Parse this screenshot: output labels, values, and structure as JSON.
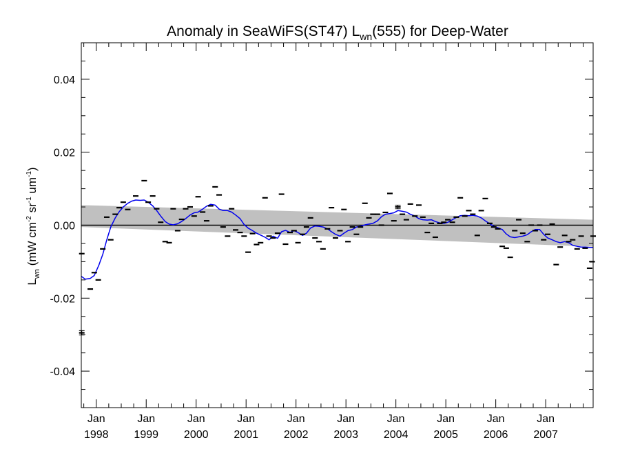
{
  "chart_data": {
    "type": "scatter",
    "title": {
      "prefix": "Anomaly in SeaWiFS(ST47) L",
      "sub": "wn",
      "suffix": "(555) for Deep-Water"
    },
    "ylabel": {
      "L": "L",
      "wn": "wn",
      "open": " (mW cm",
      "exp1": "-2",
      "sr": " sr",
      "exp2": "-1",
      "um": " um",
      "exp3": "-1",
      "close": ")"
    },
    "xlim": [
      1997.7,
      2007.95
    ],
    "ylim": [
      -0.05,
      0.05
    ],
    "grid": false,
    "yticks": [
      {
        "value": -0.04,
        "label": "-0.04"
      },
      {
        "value": -0.02,
        "label": "-0.02"
      },
      {
        "value": 0.0,
        "label": "0.00"
      },
      {
        "value": 0.02,
        "label": "0.02"
      },
      {
        "value": 0.04,
        "label": "0.04"
      }
    ],
    "xticks": [
      {
        "value": 1998.0,
        "month": "Jan",
        "year": "1998"
      },
      {
        "value": 1999.0,
        "month": "Jan",
        "year": "1999"
      },
      {
        "value": 2000.0,
        "month": "Jan",
        "year": "2000"
      },
      {
        "value": 2001.0,
        "month": "Jan",
        "year": "2001"
      },
      {
        "value": 2002.0,
        "month": "Jan",
        "year": "2002"
      },
      {
        "value": 2003.0,
        "month": "Jan",
        "year": "2003"
      },
      {
        "value": 2004.0,
        "month": "Jan",
        "year": "2004"
      },
      {
        "value": 2005.0,
        "month": "Jan",
        "year": "2005"
      },
      {
        "value": 2006.0,
        "month": "Jan",
        "year": "2006"
      },
      {
        "value": 2007.0,
        "month": "Jan",
        "year": "2007"
      }
    ],
    "reference_line": {
      "y": 0.0,
      "color": "#000000"
    },
    "confidence_band": {
      "color": "#c0c0c0",
      "x": [
        1997.7,
        2007.95
      ],
      "upper": [
        0.0055,
        0.0015
      ],
      "lower": [
        -0.0005,
        -0.0059
      ]
    },
    "smoothed_series": {
      "color": "#0000ee",
      "points": [
        {
          "x": 1997.7,
          "y": -0.014
        },
        {
          "x": 1997.78,
          "y": -0.0148
        },
        {
          "x": 1997.88,
          "y": -0.0146
        },
        {
          "x": 1997.96,
          "y": -0.0138
        },
        {
          "x": 1998.05,
          "y": -0.011
        },
        {
          "x": 1998.13,
          "y": -0.008
        },
        {
          "x": 1998.21,
          "y": -0.004
        },
        {
          "x": 1998.29,
          "y": -0.0005
        },
        {
          "x": 1998.38,
          "y": 0.002
        },
        {
          "x": 1998.46,
          "y": 0.0037
        },
        {
          "x": 1998.54,
          "y": 0.005
        },
        {
          "x": 1998.63,
          "y": 0.006
        },
        {
          "x": 1998.71,
          "y": 0.0066
        },
        {
          "x": 1998.79,
          "y": 0.0069
        },
        {
          "x": 1998.88,
          "y": 0.0068
        },
        {
          "x": 1998.96,
          "y": 0.0069
        },
        {
          "x": 1999.04,
          "y": 0.0063
        },
        {
          "x": 1999.13,
          "y": 0.0053
        },
        {
          "x": 1999.21,
          "y": 0.004
        },
        {
          "x": 1999.29,
          "y": 0.0025
        },
        {
          "x": 1999.38,
          "y": 0.001
        },
        {
          "x": 1999.46,
          "y": 0.0003
        },
        {
          "x": 1999.54,
          "y": 0.0001
        },
        {
          "x": 1999.63,
          "y": 0.0004
        },
        {
          "x": 1999.71,
          "y": 0.001
        },
        {
          "x": 1999.79,
          "y": 0.0018
        },
        {
          "x": 1999.88,
          "y": 0.0028
        },
        {
          "x": 1999.96,
          "y": 0.0034
        },
        {
          "x": 2000.04,
          "y": 0.0036
        },
        {
          "x": 2000.13,
          "y": 0.0044
        },
        {
          "x": 2000.21,
          "y": 0.0052
        },
        {
          "x": 2000.29,
          "y": 0.0057
        },
        {
          "x": 2000.38,
          "y": 0.0055
        },
        {
          "x": 2000.46,
          "y": 0.0044
        },
        {
          "x": 2000.54,
          "y": 0.004
        },
        {
          "x": 2000.63,
          "y": 0.004
        },
        {
          "x": 2000.71,
          "y": 0.0036
        },
        {
          "x": 2000.79,
          "y": 0.0028
        },
        {
          "x": 2000.88,
          "y": 0.0018
        },
        {
          "x": 2000.96,
          "y": 0.0002
        },
        {
          "x": 2001.04,
          "y": -0.0008
        },
        {
          "x": 2001.13,
          "y": -0.0015
        },
        {
          "x": 2001.21,
          "y": -0.0022
        },
        {
          "x": 2001.29,
          "y": -0.0027
        },
        {
          "x": 2001.38,
          "y": -0.0033
        },
        {
          "x": 2001.46,
          "y": -0.004
        },
        {
          "x": 2001.54,
          "y": -0.003
        },
        {
          "x": 2001.63,
          "y": -0.0036
        },
        {
          "x": 2001.71,
          "y": -0.0018
        },
        {
          "x": 2001.79,
          "y": -0.0014
        },
        {
          "x": 2001.88,
          "y": -0.002
        },
        {
          "x": 2001.96,
          "y": -0.0015
        },
        {
          "x": 2002.04,
          "y": -0.002
        },
        {
          "x": 2002.13,
          "y": -0.0028
        },
        {
          "x": 2002.21,
          "y": -0.0022
        },
        {
          "x": 2002.29,
          "y": -0.0008
        },
        {
          "x": 2002.38,
          "y": -0.0002
        },
        {
          "x": 2002.46,
          "y": -0.0003
        },
        {
          "x": 2002.54,
          "y": -0.0005
        },
        {
          "x": 2002.63,
          "y": -0.001
        },
        {
          "x": 2002.71,
          "y": -0.0018
        },
        {
          "x": 2002.79,
          "y": -0.0025
        },
        {
          "x": 2002.88,
          "y": -0.003
        },
        {
          "x": 2002.96,
          "y": -0.0022
        },
        {
          "x": 2003.04,
          "y": -0.0015
        },
        {
          "x": 2003.13,
          "y": -0.0012
        },
        {
          "x": 2003.21,
          "y": -0.0005
        },
        {
          "x": 2003.29,
          "y": -0.0003
        },
        {
          "x": 2003.38,
          "y": 0.0001
        },
        {
          "x": 2003.46,
          "y": 0.0003
        },
        {
          "x": 2003.54,
          "y": 0.0005
        },
        {
          "x": 2003.63,
          "y": 0.0012
        },
        {
          "x": 2003.71,
          "y": 0.0023
        },
        {
          "x": 2003.79,
          "y": 0.003
        },
        {
          "x": 2003.88,
          "y": 0.0032
        },
        {
          "x": 2003.96,
          "y": 0.0034
        },
        {
          "x": 2004.04,
          "y": 0.004
        },
        {
          "x": 2004.13,
          "y": 0.0038
        },
        {
          "x": 2004.21,
          "y": 0.0036
        },
        {
          "x": 2004.29,
          "y": 0.003
        },
        {
          "x": 2004.38,
          "y": 0.0025
        },
        {
          "x": 2004.46,
          "y": 0.0018
        },
        {
          "x": 2004.54,
          "y": 0.0015
        },
        {
          "x": 2004.63,
          "y": 0.0014
        },
        {
          "x": 2004.71,
          "y": 0.0015
        },
        {
          "x": 2004.79,
          "y": 0.001
        },
        {
          "x": 2004.88,
          "y": 0.0006
        },
        {
          "x": 2004.96,
          "y": 0.0005
        },
        {
          "x": 2005.04,
          "y": 0.0008
        },
        {
          "x": 2005.13,
          "y": 0.0015
        },
        {
          "x": 2005.21,
          "y": 0.0021
        },
        {
          "x": 2005.29,
          "y": 0.0026
        },
        {
          "x": 2005.38,
          "y": 0.0027
        },
        {
          "x": 2005.46,
          "y": 0.0026
        },
        {
          "x": 2005.54,
          "y": 0.0027
        },
        {
          "x": 2005.63,
          "y": 0.0025
        },
        {
          "x": 2005.71,
          "y": 0.002
        },
        {
          "x": 2005.79,
          "y": 0.0012
        },
        {
          "x": 2005.88,
          "y": 0.0004
        },
        {
          "x": 2005.96,
          "y": -0.0003
        },
        {
          "x": 2006.04,
          "y": -0.0007
        },
        {
          "x": 2006.13,
          "y": -0.0012
        },
        {
          "x": 2006.21,
          "y": -0.0024
        },
        {
          "x": 2006.29,
          "y": -0.0032
        },
        {
          "x": 2006.38,
          "y": -0.0034
        },
        {
          "x": 2006.46,
          "y": -0.0032
        },
        {
          "x": 2006.54,
          "y": -0.003
        },
        {
          "x": 2006.63,
          "y": -0.0026
        },
        {
          "x": 2006.71,
          "y": -0.0018
        },
        {
          "x": 2006.79,
          "y": -0.0012
        },
        {
          "x": 2006.88,
          "y": -0.0012
        },
        {
          "x": 2006.96,
          "y": -0.0025
        },
        {
          "x": 2007.04,
          "y": -0.0035
        },
        {
          "x": 2007.13,
          "y": -0.004
        },
        {
          "x": 2007.21,
          "y": -0.0045
        },
        {
          "x": 2007.29,
          "y": -0.0048
        },
        {
          "x": 2007.38,
          "y": -0.0045
        },
        {
          "x": 2007.46,
          "y": -0.0048
        },
        {
          "x": 2007.54,
          "y": -0.0055
        },
        {
          "x": 2007.63,
          "y": -0.0058
        },
        {
          "x": 2007.71,
          "y": -0.006
        },
        {
          "x": 2007.79,
          "y": -0.006
        },
        {
          "x": 2007.88,
          "y": -0.0061
        },
        {
          "x": 2007.95,
          "y": -0.0061
        }
      ]
    },
    "monthly_points": [
      {
        "x": 1997.71,
        "y": -0.0078
      },
      {
        "x": 1997.71,
        "y": -0.0295
      },
      {
        "x": 1997.88,
        "y": -0.0175
      },
      {
        "x": 1997.96,
        "y": -0.013
      },
      {
        "x": 1998.04,
        "y": -0.015
      },
      {
        "x": 1998.13,
        "y": -0.0065
      },
      {
        "x": 1998.21,
        "y": 0.0022
      },
      {
        "x": 1998.29,
        "y": -0.004
      },
      {
        "x": 1998.38,
        "y": 0.003
      },
      {
        "x": 1998.46,
        "y": 0.0048
      },
      {
        "x": 1998.54,
        "y": 0.0063
      },
      {
        "x": 1998.63,
        "y": 0.0043
      },
      {
        "x": 1998.79,
        "y": 0.008
      },
      {
        "x": 1998.96,
        "y": 0.0122
      },
      {
        "x": 1999.04,
        "y": 0.0063
      },
      {
        "x": 1999.13,
        "y": 0.008
      },
      {
        "x": 1999.21,
        "y": 0.0045
      },
      {
        "x": 1999.29,
        "y": 0.0008
      },
      {
        "x": 1999.38,
        "y": -0.0045
      },
      {
        "x": 1999.46,
        "y": -0.0048
      },
      {
        "x": 1999.54,
        "y": 0.0045
      },
      {
        "x": 1999.63,
        "y": -0.0015
      },
      {
        "x": 1999.71,
        "y": 0.0016
      },
      {
        "x": 1999.79,
        "y": 0.0045
      },
      {
        "x": 1999.88,
        "y": 0.005
      },
      {
        "x": 1999.96,
        "y": 0.0025
      },
      {
        "x": 2000.04,
        "y": 0.0078
      },
      {
        "x": 2000.13,
        "y": 0.0036
      },
      {
        "x": 2000.21,
        "y": 0.0012
      },
      {
        "x": 2000.29,
        "y": 0.0053
      },
      {
        "x": 2000.38,
        "y": 0.0105
      },
      {
        "x": 2000.46,
        "y": 0.0083
      },
      {
        "x": 2000.54,
        "y": -0.0005
      },
      {
        "x": 2000.63,
        "y": -0.003
      },
      {
        "x": 2000.71,
        "y": 0.0045
      },
      {
        "x": 2000.79,
        "y": -0.0013
      },
      {
        "x": 2000.88,
        "y": -0.002
      },
      {
        "x": 2000.96,
        "y": -0.003
      },
      {
        "x": 2001.04,
        "y": -0.0074
      },
      {
        "x": 2001.13,
        "y": -0.0023
      },
      {
        "x": 2001.21,
        "y": -0.0053
      },
      {
        "x": 2001.29,
        "y": -0.0048
      },
      {
        "x": 2001.38,
        "y": 0.0075
      },
      {
        "x": 2001.46,
        "y": -0.003
      },
      {
        "x": 2001.54,
        "y": -0.0035
      },
      {
        "x": 2001.63,
        "y": -0.0022
      },
      {
        "x": 2001.71,
        "y": 0.0085
      },
      {
        "x": 2001.79,
        "y": -0.0052
      },
      {
        "x": 2001.88,
        "y": -0.002
      },
      {
        "x": 2001.96,
        "y": -0.0015
      },
      {
        "x": 2002.04,
        "y": -0.0048
      },
      {
        "x": 2002.13,
        "y": -0.0025
      },
      {
        "x": 2002.21,
        "y": -0.0005
      },
      {
        "x": 2002.29,
        "y": 0.002
      },
      {
        "x": 2002.38,
        "y": -0.0035
      },
      {
        "x": 2002.46,
        "y": -0.0045
      },
      {
        "x": 2002.54,
        "y": -0.0065
      },
      {
        "x": 2002.63,
        "y": -0.001
      },
      {
        "x": 2002.71,
        "y": 0.0048
      },
      {
        "x": 2002.79,
        "y": -0.0035
      },
      {
        "x": 2002.88,
        "y": -0.0015
      },
      {
        "x": 2002.96,
        "y": 0.0043
      },
      {
        "x": 2003.04,
        "y": -0.0045
      },
      {
        "x": 2003.13,
        "y": -0.0005
      },
      {
        "x": 2003.21,
        "y": -0.0025
      },
      {
        "x": 2003.29,
        "y": -0.0005
      },
      {
        "x": 2003.38,
        "y": 0.006
      },
      {
        "x": 2003.46,
        "y": 0.002
      },
      {
        "x": 2003.54,
        "y": 0.003
      },
      {
        "x": 2003.63,
        "y": 0.003
      },
      {
        "x": 2003.71,
        "y": 0.0
      },
      {
        "x": 2003.79,
        "y": 0.0035
      },
      {
        "x": 2003.88,
        "y": 0.0087
      },
      {
        "x": 2003.96,
        "y": 0.0012
      },
      {
        "x": 2004.04,
        "y": 0.005
      },
      {
        "x": 2004.13,
        "y": 0.003
      },
      {
        "x": 2004.21,
        "y": 0.0015
      },
      {
        "x": 2004.29,
        "y": 0.0058
      },
      {
        "x": 2004.38,
        "y": 0.0025
      },
      {
        "x": 2004.46,
        "y": 0.0055
      },
      {
        "x": 2004.54,
        "y": 0.0022
      },
      {
        "x": 2004.63,
        "y": -0.002
      },
      {
        "x": 2004.71,
        "y": 0.0005
      },
      {
        "x": 2004.79,
        "y": -0.0033
      },
      {
        "x": 2004.88,
        "y": 0.0005
      },
      {
        "x": 2004.96,
        "y": 0.0008
      },
      {
        "x": 2005.04,
        "y": 0.0015
      },
      {
        "x": 2005.13,
        "y": 0.0008
      },
      {
        "x": 2005.21,
        "y": 0.0022
      },
      {
        "x": 2005.29,
        "y": 0.0075
      },
      {
        "x": 2005.38,
        "y": 0.0025
      },
      {
        "x": 2005.46,
        "y": 0.004
      },
      {
        "x": 2005.54,
        "y": 0.003
      },
      {
        "x": 2005.63,
        "y": -0.0028
      },
      {
        "x": 2005.71,
        "y": 0.004
      },
      {
        "x": 2005.79,
        "y": 0.0073
      },
      {
        "x": 2005.88,
        "y": 0.0005
      },
      {
        "x": 2005.96,
        "y": -0.0005
      },
      {
        "x": 2006.04,
        "y": -0.001
      },
      {
        "x": 2006.13,
        "y": -0.0058
      },
      {
        "x": 2006.21,
        "y": -0.0063
      },
      {
        "x": 2006.29,
        "y": -0.0088
      },
      {
        "x": 2006.38,
        "y": -0.0015
      },
      {
        "x": 2006.46,
        "y": 0.0015
      },
      {
        "x": 2006.54,
        "y": -0.0022
      },
      {
        "x": 2006.63,
        "y": -0.0045
      },
      {
        "x": 2006.71,
        "y": 0.0
      },
      {
        "x": 2006.79,
        "y": -0.0015
      },
      {
        "x": 2006.88,
        "y": 0.0
      },
      {
        "x": 2006.96,
        "y": -0.004
      },
      {
        "x": 2007.04,
        "y": -0.0025
      },
      {
        "x": 2007.13,
        "y": 0.0003
      },
      {
        "x": 2007.21,
        "y": -0.0108
      },
      {
        "x": 2007.29,
        "y": -0.006
      },
      {
        "x": 2007.38,
        "y": -0.0028
      },
      {
        "x": 2007.46,
        "y": -0.0045
      },
      {
        "x": 2007.54,
        "y": -0.004
      },
      {
        "x": 2007.63,
        "y": -0.0065
      },
      {
        "x": 2007.71,
        "y": -0.003
      },
      {
        "x": 2007.79,
        "y": -0.0063
      },
      {
        "x": 2007.88,
        "y": -0.0118
      },
      {
        "x": 2007.93,
        "y": -0.01
      },
      {
        "x": 2007.95,
        "y": -0.003
      }
    ],
    "error_bars": [
      {
        "x": 1997.71,
        "y": -0.0295,
        "err": 0.0006
      },
      {
        "x": 2004.04,
        "y": 0.005,
        "err": 0.0005
      }
    ]
  }
}
